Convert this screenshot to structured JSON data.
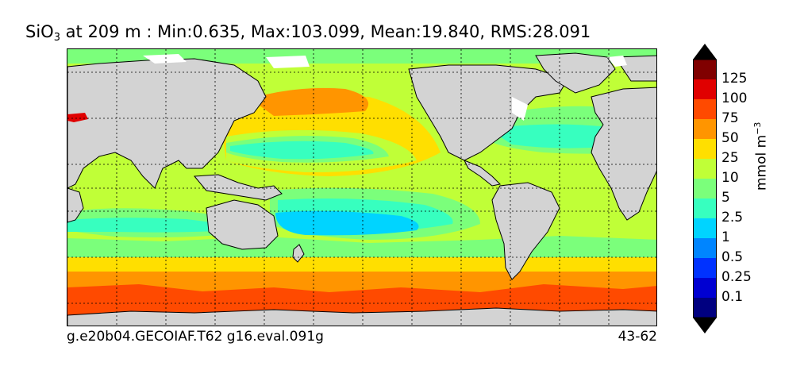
{
  "title": {
    "species": "SiO",
    "species_sub": "3",
    "rest": " at 209 m : Min:0.635, Max:103.099, Mean:19.840, RMS:28.091"
  },
  "footer": {
    "left": "g.e20b04.GECOIAF.T62 g16.eval.091g",
    "right": "43-62"
  },
  "colorbar": {
    "units_base": "mmol m",
    "units_exp": "−3",
    "ticks": [
      "125",
      "100",
      "75",
      "50",
      "25",
      "10",
      "5",
      "2.5",
      "1",
      "0.5",
      "0.25",
      "0.1"
    ],
    "colors": [
      "#800000",
      "#e00000",
      "#ff4a00",
      "#ff9500",
      "#ffdf00",
      "#c0ff37",
      "#7bff7b",
      "#37ffbf",
      "#00d4ff",
      "#0085ff",
      "#0032ff",
      "#0000d2",
      "#000080"
    ],
    "over_color": "#000000",
    "under_color": "#000000"
  },
  "map": {
    "land_color": "#d3d3d3",
    "ice_color": "#ffffff",
    "coast_color": "#000000"
  }
}
